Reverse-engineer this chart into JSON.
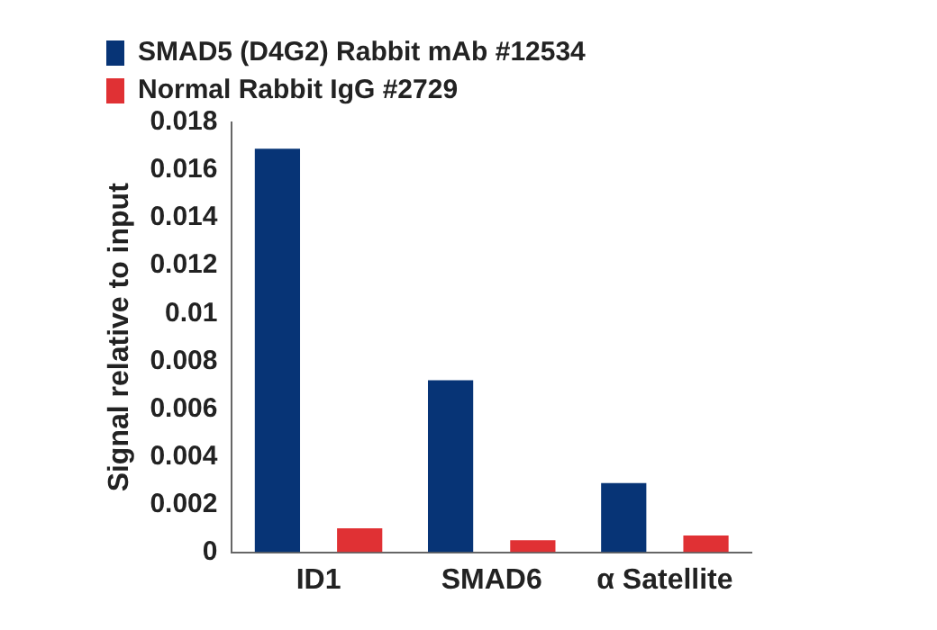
{
  "chart_data": {
    "type": "bar",
    "ylabel": "Signal relative to input",
    "categories": [
      "ID1",
      "SMAD6",
      "α Satellite"
    ],
    "series": [
      {
        "name": "SMAD5 (D4G2) Rabbit mAb #12534",
        "color": "#073476",
        "values": [
          0.0169,
          0.0072,
          0.0029
        ]
      },
      {
        "name": "Normal Rabbit IgG #2729",
        "color": "#e03134",
        "values": [
          0.001,
          0.0005,
          0.0007
        ]
      }
    ],
    "ylim": [
      0,
      0.018
    ],
    "yticks": [
      0,
      0.002,
      0.004,
      0.006,
      0.008,
      0.01,
      0.012,
      0.014,
      0.016,
      0.018
    ],
    "grid": false,
    "legend": "top left"
  }
}
